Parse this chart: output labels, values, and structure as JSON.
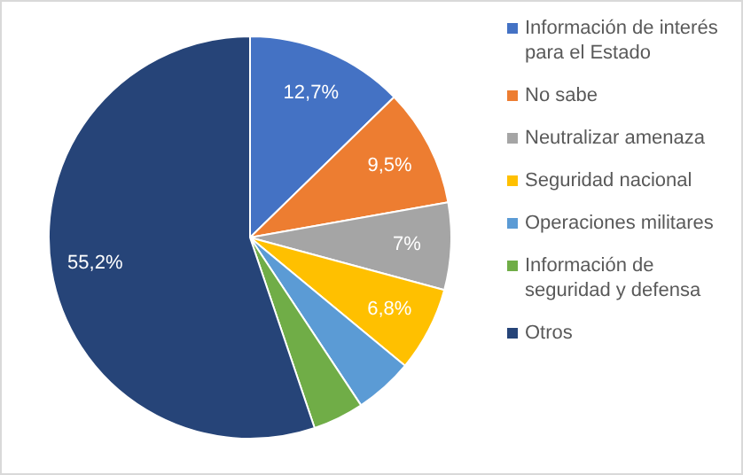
{
  "chart_data": {
    "type": "pie",
    "categories": [
      "Información de interés para el Estado",
      "No sabe",
      "Neutralizar amenaza",
      "Seguridad nacional",
      "Operaciones militares",
      "Información de seguridad y defensa",
      "Otros"
    ],
    "values": [
      12.7,
      9.5,
      7,
      6.8,
      4.7,
      4.1,
      55.2
    ],
    "colors": [
      "#4472c4",
      "#ed7d31",
      "#a5a5a5",
      "#ffc000",
      "#5b9bd5",
      "#70ad47",
      "#264478"
    ],
    "value_labels": [
      "12,7%",
      "9,5%",
      "7%",
      "6,8%",
      null,
      null,
      "55,2%"
    ],
    "legend": "right"
  }
}
